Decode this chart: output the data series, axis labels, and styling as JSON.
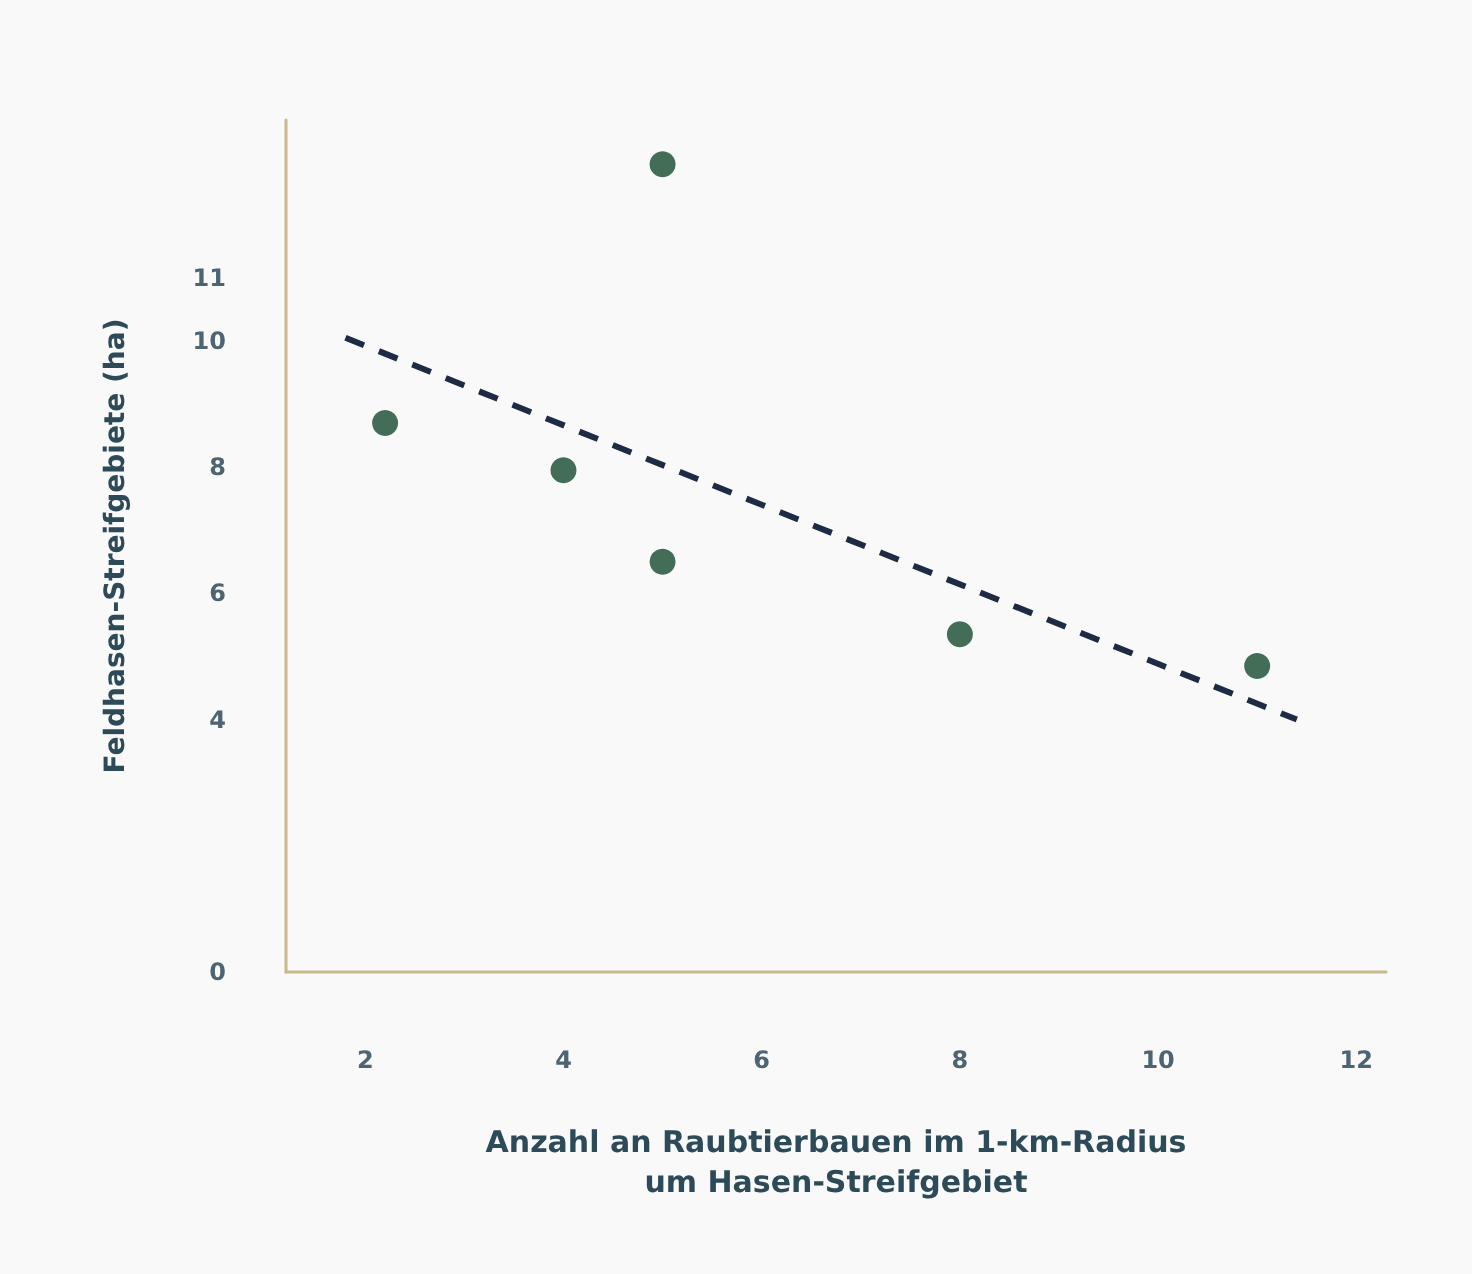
{
  "chart_data": {
    "type": "scatter",
    "xlabel": "Anzahl an Raubtierbauen im 1-km-Radius\num Hasen-Streifgebiet",
    "ylabel": "Feldhasen-Streifgebiete (ha)",
    "x": [
      2.2,
      4,
      5,
      5,
      8,
      11
    ],
    "series": [
      {
        "type": "scatter",
        "color": "#174a2e",
        "values": [
          8.7,
          7.95,
          12.8,
          6.5,
          5.35,
          4.85
        ],
        "marker": "circle"
      },
      {
        "type": "line",
        "color": "#1e2b45",
        "x": [
          1.8,
          11.4
        ],
        "values": [
          10.05,
          4.0
        ],
        "line_style": "dashed",
        "marker": "none"
      }
    ],
    "xlim": [
      1.2,
      12.3
    ],
    "xticks": [
      2,
      4,
      6,
      8,
      10,
      12
    ],
    "ylim": [
      0,
      13.5
    ],
    "yticks": [
      0,
      4,
      6,
      8,
      10,
      11
    ],
    "grid": false
  }
}
